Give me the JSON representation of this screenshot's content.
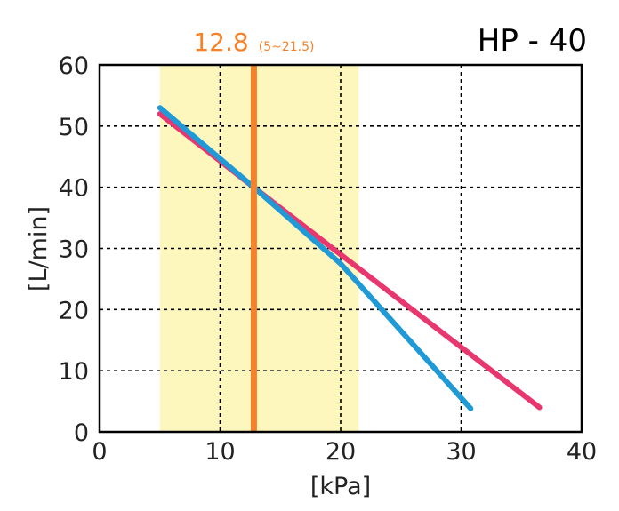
{
  "chart_data": {
    "type": "line",
    "title": "HP - 40",
    "xlabel": "[kPa]",
    "ylabel": "[L/min]",
    "xlim": [
      0,
      40
    ],
    "ylim": [
      0,
      60
    ],
    "xticks": [
      "0",
      "10",
      "20",
      "30",
      "40"
    ],
    "yticks": [
      "0",
      "10",
      "20",
      "30",
      "40",
      "50",
      "60"
    ],
    "grid": true,
    "shaded_range": {
      "from": 5,
      "to": 21.5,
      "color": "#fdf6bd"
    },
    "marker": {
      "x": 12.8,
      "value_label": "12.8",
      "range_label": "(5~21.5)",
      "color": "#f5822a"
    },
    "series": [
      {
        "color": "#e8366f",
        "x": [
          5,
          12.8,
          20,
          36.5
        ],
        "y": [
          52,
          40,
          29,
          4
        ]
      },
      {
        "color": "#1f9ad6",
        "x": [
          5,
          12.8,
          20,
          30.8
        ],
        "y": [
          53,
          40,
          27.5,
          3.8
        ]
      }
    ]
  }
}
